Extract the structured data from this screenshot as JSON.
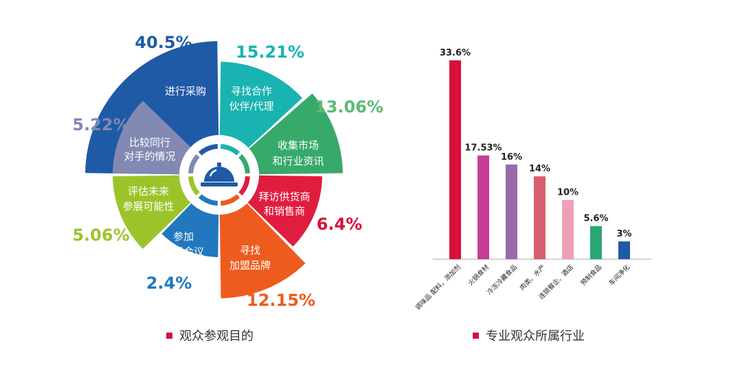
{
  "chart_data": [
    {
      "type": "pie",
      "title": "观众参观目的",
      "slices": [
        {
          "label": "进行采购",
          "percent_label": "40.5%",
          "value": 40.5,
          "color": "#1f5aa6",
          "label_color": "#1f5aa6"
        },
        {
          "label": "寻找合作伙伴/代理",
          "percent_label": "15.21%",
          "value": 15.21,
          "color": "#19b3b1",
          "label_color": "#19b3b1"
        },
        {
          "label": "收集市场和行业资讯",
          "percent_label": "13.06%",
          "value": 13.06,
          "color": "#36a96b",
          "label_color": "#5dbb73"
        },
        {
          "label": "拜访供货商和销售商",
          "percent_label": "6.4%",
          "value": 6.4,
          "color": "#e01d3f",
          "label_color": "#d6113c"
        },
        {
          "label": "寻找加盟品牌",
          "percent_label": "12.15%",
          "value": 12.15,
          "color": "#ee5b1e",
          "label_color": "#ee5b1e"
        },
        {
          "label": "参加论坛会议",
          "percent_label": "2.4%",
          "value": 2.4,
          "color": "#2178be",
          "label_color": "#2178be"
        },
        {
          "label": "评估未来参展可能性",
          "percent_label": "5.06%",
          "value": 5.06,
          "color": "#9cc42a",
          "label_color": "#9cc42a"
        },
        {
          "label": "比较同行对手的情况",
          "percent_label": "5.22%",
          "value": 5.22,
          "color": "#8289b3",
          "label_color": "#8289b3"
        }
      ]
    },
    {
      "type": "bar",
      "title": "专业观众所属行业",
      "categories": [
        "调味品 配料，添加剂",
        "火锅食材",
        "冷冻冷藏食品",
        "肉类、水产",
        "连锁餐企、酒店",
        "预制食品",
        "车间净化"
      ],
      "values": [
        33.6,
        17.53,
        16,
        14,
        10,
        5.6,
        3
      ],
      "value_labels": [
        "33.6%",
        "17.53%",
        "16%",
        "14%",
        "10%",
        "5.6%",
        "3%"
      ],
      "colors": [
        "#d6113c",
        "#c83d95",
        "#9a6aa8",
        "#d95f6e",
        "#eea0b4",
        "#2aa773",
        "#1f5aa6"
      ],
      "ylim": [
        0,
        35
      ]
    }
  ],
  "legends": {
    "left": "观众参观目的",
    "right": "专业观众所属行业"
  }
}
